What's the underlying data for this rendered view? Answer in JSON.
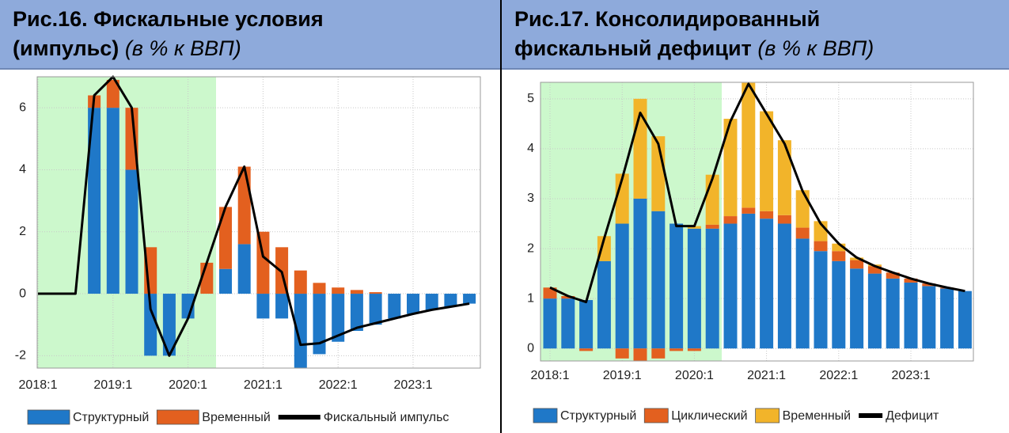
{
  "chart_data": [
    {
      "type": "bar",
      "title": "Рис.16. Фискальные условия (импульс)",
      "subtitle": "(в % к ВВП)",
      "categories": [
        "2018:1",
        null,
        null,
        null,
        "2019:1",
        null,
        null,
        null,
        "2020:1",
        null,
        null,
        null,
        "2021:1",
        null,
        null,
        null,
        "2022:1",
        null,
        null,
        null,
        "2023:1",
        null,
        null,
        null
      ],
      "series": [
        {
          "name": "Структурный",
          "type": "bar",
          "color": "#1f78c8",
          "values": [
            0,
            0,
            0,
            6.0,
            6.0,
            4.0,
            -2.0,
            -2.0,
            -0.8,
            0,
            0.8,
            1.6,
            -0.8,
            -0.8,
            -2.4,
            -1.95,
            -1.55,
            -1.2,
            -1.0,
            -0.8,
            -0.65,
            -0.52,
            -0.42,
            -0.32
          ]
        },
        {
          "name": "Временный",
          "type": "bar",
          "color": "#e3601f",
          "values": [
            0,
            0,
            0,
            0.4,
            0.9,
            2.0,
            1.5,
            0,
            0,
            1.0,
            2.0,
            2.5,
            2.0,
            1.5,
            0.75,
            0.35,
            0.2,
            0.12,
            0.05,
            0,
            0,
            0,
            0,
            0
          ]
        },
        {
          "name": "Фискальный импульс",
          "type": "line",
          "color": "#000000",
          "values": [
            0,
            0,
            0,
            6.4,
            7.0,
            6.0,
            -0.5,
            -2.0,
            -0.8,
            1.0,
            2.8,
            4.1,
            1.2,
            0.7,
            -1.65,
            -1.6,
            -1.35,
            -1.1,
            -0.95,
            -0.8,
            -0.65,
            -0.52,
            -0.42,
            -0.32
          ]
        }
      ],
      "ylim": [
        -2.4,
        7
      ],
      "yticks": [
        -2,
        0,
        2,
        4,
        6
      ],
      "grid": true
    },
    {
      "type": "bar",
      "title": "Рис.17. Консолидированный фискальный дефицит",
      "subtitle": "(в % к ВВП)",
      "categories": [
        "2018:1",
        null,
        null,
        null,
        "2019:1",
        null,
        null,
        null,
        "2020:1",
        null,
        null,
        null,
        "2021:1",
        null,
        null,
        null,
        "2022:1",
        null,
        null,
        null,
        "2023:1",
        null,
        null,
        null
      ],
      "series": [
        {
          "name": "Структурный",
          "type": "bar",
          "color": "#1f78c8",
          "values": [
            1.0,
            1.0,
            0.97,
            1.75,
            2.5,
            3.0,
            2.75,
            2.5,
            2.4,
            2.4,
            2.5,
            2.7,
            2.6,
            2.5,
            2.2,
            1.95,
            1.75,
            1.6,
            1.5,
            1.4,
            1.32,
            1.25,
            1.2,
            1.15
          ]
        },
        {
          "name": "Циклический",
          "type": "bar",
          "color": "#e3601f",
          "values": [
            0.22,
            0.05,
            -0.05,
            0,
            -0.2,
            -0.25,
            -0.2,
            -0.05,
            -0.05,
            0.08,
            0.15,
            0.12,
            0.15,
            0.17,
            0.22,
            0.2,
            0.2,
            0.17,
            0.15,
            0.12,
            0.08,
            0.05,
            0.02,
            0
          ]
        },
        {
          "name": "Временный",
          "type": "bar",
          "color": "#f2b42a",
          "values": [
            0,
            0,
            0,
            0.5,
            1.0,
            2.0,
            1.5,
            0,
            0.05,
            1.0,
            1.95,
            2.5,
            2.0,
            1.5,
            0.75,
            0.4,
            0.15,
            0.05,
            0.03,
            0,
            0,
            0,
            0,
            0
          ]
        },
        {
          "name": "Дефицит",
          "type": "line",
          "color": "#000000",
          "values": [
            1.22,
            1.05,
            0.93,
            2.2,
            3.4,
            4.72,
            4.1,
            2.45,
            2.45,
            3.4,
            4.55,
            5.3,
            4.7,
            4.1,
            3.15,
            2.5,
            2.1,
            1.82,
            1.65,
            1.52,
            1.4,
            1.3,
            1.22,
            1.15
          ]
        }
      ],
      "ylim": [
        -0.25,
        5.33
      ],
      "yticks": [
        0,
        1,
        2,
        3,
        4,
        5
      ],
      "grid": true
    }
  ]
}
